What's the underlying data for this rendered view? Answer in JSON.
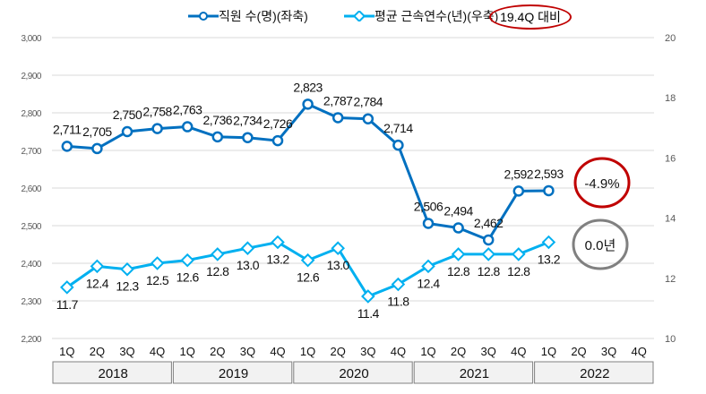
{
  "chart_data": {
    "type": "line",
    "title": "",
    "legend": {
      "placement": "top"
    },
    "quarters": [
      "1Q",
      "2Q",
      "3Q",
      "4Q"
    ],
    "years": [
      "2018",
      "2019",
      "2020",
      "2021",
      "2022"
    ],
    "series": [
      {
        "name": "직원 수(명)(좌축)",
        "axis": "left",
        "color": "#0070c0",
        "values": [
          2711,
          2705,
          2750,
          2758,
          2763,
          2736,
          2734,
          2726,
          2823,
          2787,
          2784,
          2714,
          2506,
          2494,
          2462,
          2592,
          2593
        ],
        "labels": [
          "2,711",
          "2,705",
          "2,750",
          "2,758",
          "2,763",
          "2,736",
          "2,734",
          "2,726",
          "2,823",
          "2,787",
          "2,784",
          "2,714",
          "2,506",
          "2,494",
          "2,462",
          "2,592",
          "2,593"
        ]
      },
      {
        "name": "평균 근속연수(년)(우축)",
        "axis": "right",
        "color": "#00b0f0",
        "values": [
          11.7,
          12.4,
          12.3,
          12.5,
          12.6,
          12.8,
          13.0,
          13.2,
          12.6,
          13.0,
          11.4,
          11.8,
          12.4,
          12.8,
          12.8,
          12.8,
          13.2
        ],
        "labels": [
          "11.7",
          "12.4",
          "12.3",
          "12.5",
          "12.6",
          "12.8",
          "13.0",
          "13.2",
          "12.6",
          "13.0",
          "11.4",
          "11.8",
          "12.4",
          "12.8",
          "12.8",
          "12.8",
          "13.2"
        ]
      }
    ],
    "left_axis": {
      "range": [
        2200,
        3000
      ],
      "ticks": [
        "2,200",
        "2,300",
        "2,400",
        "2,500",
        "2,600",
        "2,700",
        "2,800",
        "2,900",
        "3,000"
      ]
    },
    "right_axis": {
      "range": [
        10,
        20
      ],
      "ticks": [
        "10",
        "12",
        "14",
        "16",
        "18",
        "20"
      ]
    },
    "grid": true,
    "annotations": {
      "badge": "19.4Q 대비",
      "employee_change": "-4.9%",
      "tenure_change": "0.0년"
    }
  }
}
